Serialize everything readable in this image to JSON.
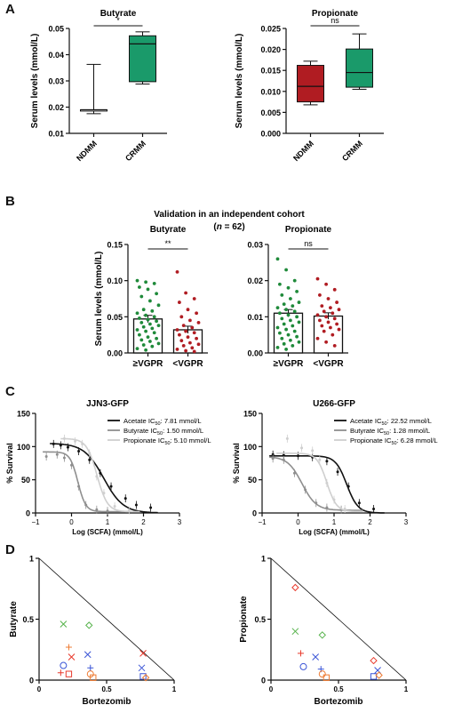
{
  "panels": {
    "a": "A",
    "b": "B",
    "c": "C",
    "d": "D"
  },
  "panel_b_header": {
    "line1": "Validation in an independent cohort",
    "line2_pre": "(",
    "line2_n": "n",
    "line2_post": " = 62)"
  },
  "colors": {
    "red": "#b01c22",
    "green": "#1a9a6a",
    "green_dot": "#1f8a3a",
    "d_red": "#e8392b",
    "d_green": "#55b24a",
    "d_blue": "#3b55d6",
    "d_orange": "#ee7a30"
  },
  "chart_data": [
    {
      "id": "A-butyrate",
      "type": "boxplot",
      "title": "Butyrate",
      "ylabel": "Serum levels (mmol/L)",
      "ylim": [
        0.01,
        0.05
      ],
      "yticks": [
        "0.01",
        "0.02",
        "0.03",
        "0.04",
        "0.05"
      ],
      "categories": [
        "NDMM",
        "CRMM"
      ],
      "boxes": [
        {
          "name": "NDMM",
          "min": 0.0175,
          "q1": 0.0185,
          "median": 0.019,
          "q3": 0.019,
          "max": 0.0363,
          "color": "#ffffff"
        },
        {
          "name": "CRMM",
          "min": 0.0288,
          "q1": 0.0297,
          "median": 0.0441,
          "q3": 0.0472,
          "max": 0.0487,
          "color": "#1a9a6a"
        }
      ],
      "significance": "*"
    },
    {
      "id": "A-propionate",
      "type": "boxplot",
      "title": "Propionate",
      "ylabel": "Serum levels (mmol/L)",
      "ylim": [
        0,
        0.025
      ],
      "yticks": [
        "0.000",
        "0.005",
        "0.010",
        "0.015",
        "0.020",
        "0.025"
      ],
      "categories": [
        "NDMM",
        "CRMM"
      ],
      "boxes": [
        {
          "name": "NDMM",
          "min": 0.0068,
          "q1": 0.0075,
          "median": 0.0112,
          "q3": 0.0162,
          "max": 0.0172,
          "color": "#b01c22"
        },
        {
          "name": "CRMM",
          "min": 0.0105,
          "q1": 0.011,
          "median": 0.0145,
          "q3": 0.0201,
          "max": 0.0237,
          "color": "#1a9a6a"
        }
      ],
      "significance": "ns"
    },
    {
      "id": "B-butyrate",
      "type": "bar-dot",
      "title": "Butyrate",
      "ylabel": "Serum levels (mmol/L)",
      "ylim": [
        0,
        0.15
      ],
      "yticks": [
        "0.00",
        "0.05",
        "0.10",
        "0.15"
      ],
      "categories": [
        "≥VGPR",
        "<VGPR"
      ],
      "means": [
        0.047,
        0.032
      ],
      "sem": [
        0.005,
        0.005
      ],
      "significance": "**",
      "points": [
        [
          0.1,
          0.098,
          0.096,
          0.091,
          0.088,
          0.082,
          0.078,
          0.072,
          0.066,
          0.06,
          0.058,
          0.055,
          0.052,
          0.05,
          0.048,
          0.046,
          0.044,
          0.042,
          0.04,
          0.038,
          0.036,
          0.034,
          0.032,
          0.03,
          0.028,
          0.025,
          0.022,
          0.02,
          0.018,
          0.016,
          0.013,
          0.011,
          0.009,
          0.006,
          0.004
        ],
        [
          0.112,
          0.083,
          0.075,
          0.07,
          0.06,
          0.055,
          0.05,
          0.045,
          0.042,
          0.038,
          0.035,
          0.032,
          0.03,
          0.028,
          0.025,
          0.022,
          0.02,
          0.017,
          0.014,
          0.012,
          0.01,
          0.007,
          0.005,
          0.003,
          0.002
        ]
      ]
    },
    {
      "id": "B-propionate",
      "type": "bar-dot",
      "title": "Propionate",
      "ylim": [
        0,
        0.03
      ],
      "yticks": [
        "0.00",
        "0.01",
        "0.02",
        "0.03"
      ],
      "categories": [
        "≥VGPR",
        "<VGPR"
      ],
      "means": [
        0.011,
        0.0102
      ],
      "sem": [
        0.001,
        0.0009
      ],
      "significance": "ns",
      "points": [
        [
          0.026,
          0.023,
          0.02,
          0.019,
          0.018,
          0.017,
          0.016,
          0.015,
          0.014,
          0.0135,
          0.013,
          0.0125,
          0.012,
          0.0115,
          0.011,
          0.0105,
          0.01,
          0.0095,
          0.009,
          0.0085,
          0.008,
          0.0075,
          0.007,
          0.0065,
          0.006,
          0.0055,
          0.005,
          0.0045,
          0.004,
          0.0035,
          0.003,
          0.0025,
          0.002,
          0.0015,
          0.001
        ],
        [
          0.0205,
          0.019,
          0.0175,
          0.016,
          0.015,
          0.014,
          0.013,
          0.0125,
          0.012,
          0.0115,
          0.011,
          0.0105,
          0.01,
          0.0095,
          0.009,
          0.0085,
          0.008,
          0.0075,
          0.007,
          0.0065,
          0.006,
          0.005,
          0.004,
          0.003,
          0.002
        ]
      ]
    },
    {
      "id": "C-JJN3",
      "type": "line",
      "title": "JJN3-GFP",
      "xlabel": "Log (SCFA) (mmol/L)",
      "ylabel": "% Survival",
      "xlim": [
        -1,
        3
      ],
      "ylim": [
        0,
        150
      ],
      "xticks": [
        "-1",
        "0",
        "1",
        "2",
        "3"
      ],
      "yticks": [
        "0",
        "50",
        "100",
        "150"
      ],
      "series": [
        {
          "name": "Acetate",
          "ic50_label": "7.81 mmol/L",
          "logIC50": 0.893,
          "top": 105,
          "bottom": 0,
          "hill": 1.6,
          "xrange": [
            -0.6,
            2.4
          ],
          "color": "#111111",
          "points": [
            [
              -0.5,
              104
            ],
            [
              -0.3,
              102
            ],
            [
              -0.1,
              99
            ],
            [
              0.2,
              93
            ],
            [
              0.5,
              80
            ],
            [
              0.8,
              60
            ],
            [
              1.1,
              40
            ],
            [
              1.5,
              22
            ],
            [
              1.8,
              12
            ],
            [
              2.2,
              8
            ]
          ]
        },
        {
          "name": "Butyrate",
          "ic50_label": "1.50 mmol/L",
          "logIC50": 0.176,
          "top": 92,
          "bottom": 2,
          "hill": 4.0,
          "xrange": [
            -0.8,
            1.5
          ],
          "color": "#8f8f8f",
          "points": [
            [
              -0.7,
              85
            ],
            [
              -0.4,
              88
            ],
            [
              -0.2,
              83
            ],
            [
              0.0,
              72
            ],
            [
              0.2,
              40
            ],
            [
              0.4,
              12
            ],
            [
              0.7,
              5
            ],
            [
              1.0,
              3
            ]
          ]
        },
        {
          "name": "Propionate",
          "ic50_label": "5.10 mmol/L",
          "logIC50": 0.708,
          "top": 112,
          "bottom": 2,
          "hill": 3.0,
          "xrange": [
            -0.3,
            1.9
          ],
          "color": "#cfcfcf",
          "points": [
            [
              -0.2,
              112
            ],
            [
              0.1,
              108
            ],
            [
              0.3,
              104
            ],
            [
              0.5,
              90
            ],
            [
              0.7,
              55
            ],
            [
              0.9,
              30
            ],
            [
              1.2,
              10
            ],
            [
              1.6,
              4
            ]
          ]
        }
      ]
    },
    {
      "id": "C-U266",
      "type": "line",
      "title": "U266-GFP",
      "xlabel": "Log (SCFA) (mmol/L)",
      "ylabel": "% Survival",
      "xlim": [
        -1,
        3
      ],
      "ylim": [
        0,
        150
      ],
      "xticks": [
        "-1",
        "0",
        "1",
        "2",
        "3"
      ],
      "yticks": [
        "0",
        "50",
        "100",
        "150"
      ],
      "series": [
        {
          "name": "Acetate",
          "ic50_label": "22.52 mmol/L",
          "logIC50": 1.353,
          "top": 86,
          "bottom": 0,
          "hill": 2.8,
          "xrange": [
            -0.8,
            2.4
          ],
          "color": "#111111",
          "points": [
            [
              -0.7,
              88
            ],
            [
              -0.4,
              87
            ],
            [
              0.0,
              86
            ],
            [
              0.4,
              84
            ],
            [
              0.8,
              78
            ],
            [
              1.1,
              62
            ],
            [
              1.4,
              40
            ],
            [
              1.7,
              15
            ],
            [
              2.1,
              6
            ]
          ]
        },
        {
          "name": "Butyrate",
          "ic50_label": "1.28 mmol/L",
          "logIC50": 0.107,
          "top": 85,
          "bottom": 4,
          "hill": 2.2,
          "xrange": [
            -0.8,
            1.8
          ],
          "color": "#8f8f8f",
          "points": [
            [
              -0.7,
              82
            ],
            [
              -0.4,
              80
            ],
            [
              -0.1,
              60
            ],
            [
              0.2,
              35
            ],
            [
              0.5,
              15
            ],
            [
              0.8,
              8
            ],
            [
              1.2,
              5
            ]
          ]
        },
        {
          "name": "Propionate",
          "ic50_label": "6.28 mmol/L",
          "logIC50": 0.798,
          "top": 90,
          "bottom": 2,
          "hill": 3.2,
          "xrange": [
            -0.6,
            1.8
          ],
          "color": "#cfcfcf",
          "points": [
            [
              -0.3,
              112
            ],
            [
              0.1,
              98
            ],
            [
              0.4,
              94
            ],
            [
              0.6,
              80
            ],
            [
              0.8,
              45
            ],
            [
              1.0,
              20
            ],
            [
              1.3,
              6
            ]
          ]
        }
      ]
    },
    {
      "id": "D-butyrate",
      "type": "scatter",
      "xlabel": "Bortezomib",
      "ylabel": "Butyrate",
      "xlim": [
        0,
        1
      ],
      "ylim": [
        0,
        1
      ],
      "xticks": [
        "0",
        "0.5",
        "1"
      ],
      "yticks": [
        "0",
        "0.5",
        "1"
      ],
      "points": [
        {
          "x": 0.18,
          "y": 0.46,
          "m": "x",
          "c": "#55b24a"
        },
        {
          "x": 0.37,
          "y": 0.45,
          "m": "diamond",
          "c": "#55b24a"
        },
        {
          "x": 0.22,
          "y": 0.27,
          "m": "plus",
          "c": "#ee7a30"
        },
        {
          "x": 0.36,
          "y": 0.21,
          "m": "x",
          "c": "#3b55d6"
        },
        {
          "x": 0.24,
          "y": 0.19,
          "m": "x",
          "c": "#e8392b"
        },
        {
          "x": 0.77,
          "y": 0.22,
          "m": "x",
          "c": "#e8392b"
        },
        {
          "x": 0.18,
          "y": 0.12,
          "m": "circle",
          "c": "#3b55d6"
        },
        {
          "x": 0.38,
          "y": 0.1,
          "m": "plus",
          "c": "#3b55d6"
        },
        {
          "x": 0.76,
          "y": 0.1,
          "m": "x",
          "c": "#3b55d6"
        },
        {
          "x": 0.16,
          "y": 0.06,
          "m": "plus",
          "c": "#e8392b"
        },
        {
          "x": 0.22,
          "y": 0.05,
          "m": "square",
          "c": "#e8392b"
        },
        {
          "x": 0.38,
          "y": 0.05,
          "m": "circle",
          "c": "#ee7a30"
        },
        {
          "x": 0.4,
          "y": 0.02,
          "m": "square",
          "c": "#ee7a30"
        },
        {
          "x": 0.77,
          "y": 0.03,
          "m": "square",
          "c": "#3b55d6"
        },
        {
          "x": 0.79,
          "y": 0.02,
          "m": "diamond",
          "c": "#ee7a30"
        }
      ]
    },
    {
      "id": "D-propionate",
      "type": "scatter",
      "xlabel": "Bortezomib",
      "ylabel": "Propionate",
      "xlim": [
        0,
        1
      ],
      "ylim": [
        0,
        1
      ],
      "xticks": [
        "0",
        "0.5",
        "1"
      ],
      "yticks": [
        "0",
        "0.5",
        "1"
      ],
      "points": [
        {
          "x": 0.18,
          "y": 0.76,
          "m": "diamond",
          "c": "#e8392b"
        },
        {
          "x": 0.18,
          "y": 0.4,
          "m": "x",
          "c": "#55b24a"
        },
        {
          "x": 0.38,
          "y": 0.37,
          "m": "diamond",
          "c": "#55b24a"
        },
        {
          "x": 0.22,
          "y": 0.22,
          "m": "plus",
          "c": "#e8392b"
        },
        {
          "x": 0.33,
          "y": 0.19,
          "m": "x",
          "c": "#3b55d6"
        },
        {
          "x": 0.76,
          "y": 0.16,
          "m": "diamond",
          "c": "#e8392b"
        },
        {
          "x": 0.24,
          "y": 0.11,
          "m": "circle",
          "c": "#3b55d6"
        },
        {
          "x": 0.37,
          "y": 0.09,
          "m": "plus",
          "c": "#3b55d6"
        },
        {
          "x": 0.79,
          "y": 0.08,
          "m": "x",
          "c": "#3b55d6"
        },
        {
          "x": 0.38,
          "y": 0.05,
          "m": "circle",
          "c": "#ee7a30"
        },
        {
          "x": 0.41,
          "y": 0.02,
          "m": "square",
          "c": "#ee7a30"
        },
        {
          "x": 0.76,
          "y": 0.03,
          "m": "square",
          "c": "#3b55d6"
        },
        {
          "x": 0.8,
          "y": 0.04,
          "m": "diamond",
          "c": "#ee7a30"
        }
      ]
    }
  ]
}
